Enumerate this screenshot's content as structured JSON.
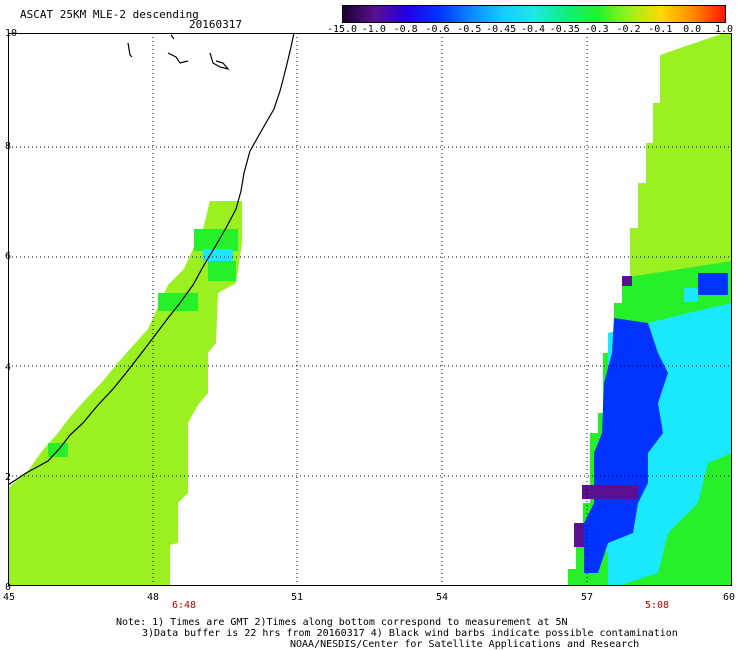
{
  "title": "ASCAT 25KM MLE-2 descending",
  "date": "20160317",
  "colorbar": {
    "labels": [
      "-15.0",
      "-1.0",
      "-0.8",
      "-0.6",
      "-0.5",
      "-0.45",
      "-0.4",
      "-0.35",
      "-0.3",
      "-0.2",
      "-0.1",
      "0.0",
      "1.0"
    ],
    "colors": [
      "#1a0030",
      "#5a1090",
      "#2400e0",
      "#0033ff",
      "#0a86ff",
      "#19c8ff",
      "#22e6e6",
      "#10ee80",
      "#25f02a",
      "#9af020",
      "#ffd800",
      "#ff8800",
      "#ff1800"
    ]
  },
  "axes": {
    "x_ticks": [
      "45",
      "48",
      "51",
      "54",
      "57",
      "60"
    ],
    "y_ticks": [
      "0",
      "2",
      "4",
      "6",
      "8",
      "10"
    ]
  },
  "pass_times": [
    "6:48",
    "5:08"
  ],
  "notes": [
    "Note: 1) Times are GMT 2)Times along bottom correspond to measurement at 5N",
    "3)Data buffer is 22 hrs from 20160317 4) Black wind barbs indicate possible contamination",
    "NOAA/NESDIS/Center for Satellite Applications and Research"
  ],
  "swath_colors": {
    "land_green": "#9af020",
    "green": "#25f02a",
    "cyan": "#19e8ff",
    "blue": "#0033ff",
    "purple": "#5a1090"
  }
}
